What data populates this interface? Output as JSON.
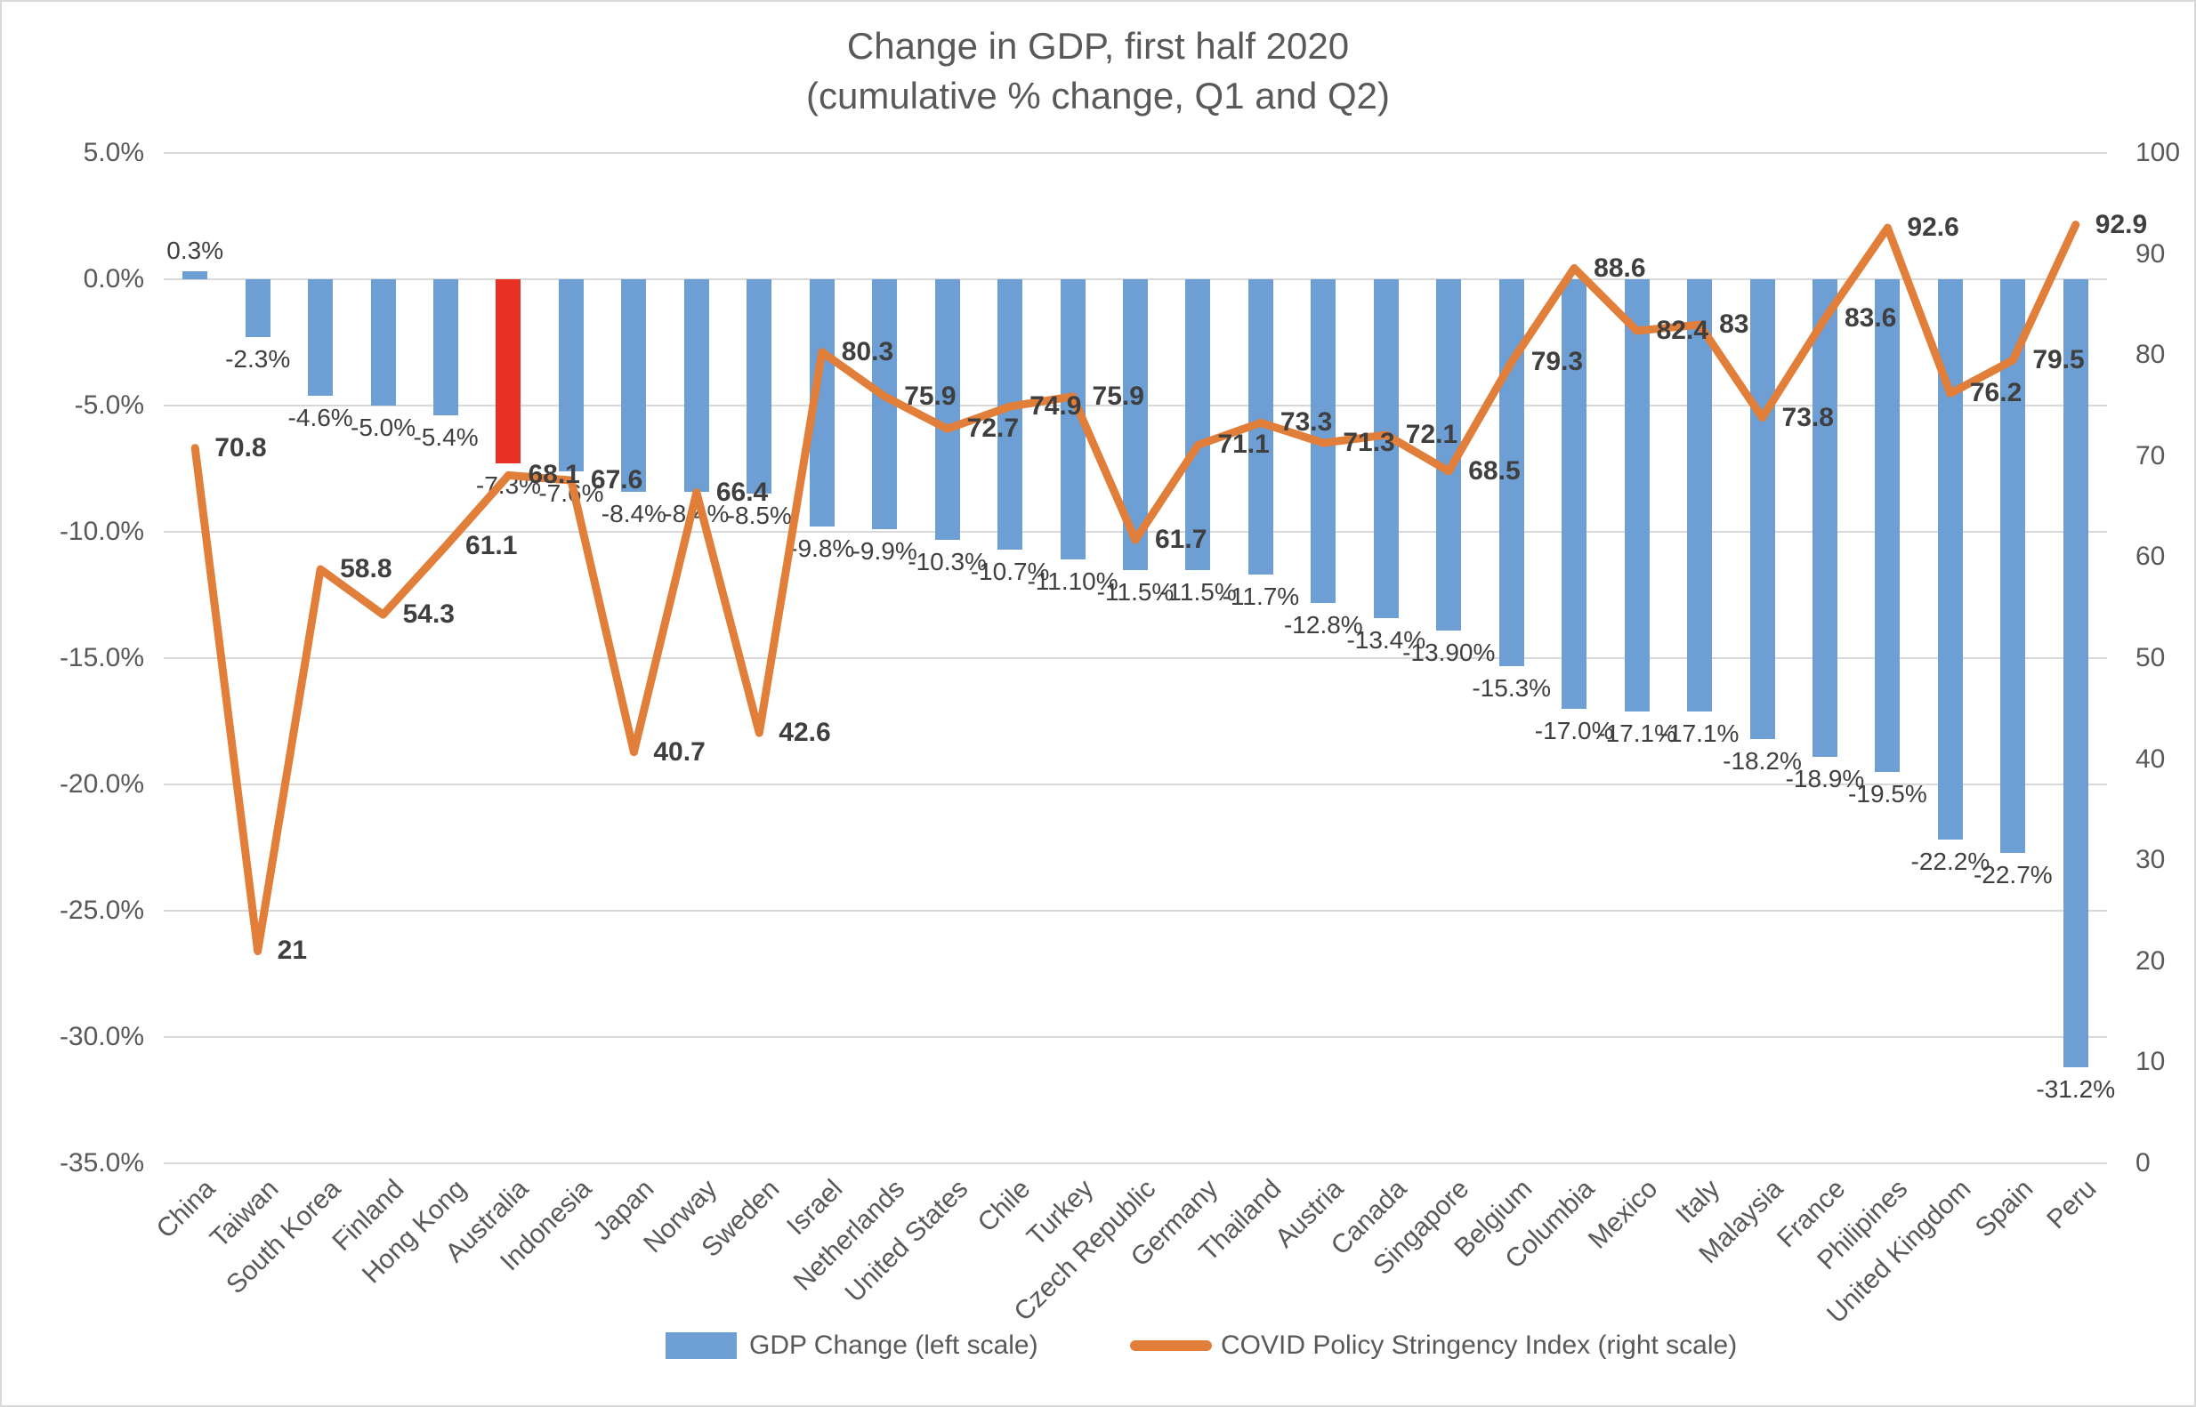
{
  "title": {
    "line1": "Change in GDP, first half 2020",
    "line2": "(cumulative % change, Q1 and Q2)"
  },
  "legend": {
    "bar_label": "GDP Change (left scale)",
    "line_label": "COVID Policy Stringency Index (right scale)"
  },
  "colors": {
    "bar": "#6d9fd4",
    "bar_highlight": "#e93025",
    "line": "#e07e3a",
    "grid": "#d9d9d9",
    "axis_text": "#595959",
    "data_label": "#3f3f3f"
  },
  "left_axis": {
    "tick_labels": [
      "5.0%",
      "0.0%",
      "-5.0%",
      "-10.0%",
      "-15.0%",
      "-20.0%",
      "-25.0%",
      "-30.0%",
      "-35.0%"
    ],
    "max": 5,
    "min": -35
  },
  "right_axis": {
    "tick_labels": [
      "100",
      "90",
      "80",
      "70",
      "60",
      "50",
      "40",
      "30",
      "20",
      "10",
      "0"
    ],
    "max": 100,
    "min": 0
  },
  "chart_data": {
    "type": "bar+line combo",
    "title": "Change in GDP, first half 2020 (cumulative % change, Q1 and Q2)",
    "grid": "horizontal",
    "left_ylim": [
      -35,
      5
    ],
    "right_ylim": [
      0,
      100
    ],
    "legend_position": "bottom",
    "categories": [
      "China",
      "Taiwan",
      "South Korea",
      "Finland",
      "Hong Kong",
      "Australia",
      "Indonesia",
      "Japan",
      "Norway",
      "Sweden",
      "Israel",
      "Netherlands",
      "United States",
      "Chile",
      "Turkey",
      "Czech Republic",
      "Germany",
      "Thailand",
      "Austria",
      "Canada",
      "Singapore",
      "Belgium",
      "Columbia",
      "Mexico",
      "Italy",
      "Malaysia",
      "France",
      "Philipines",
      "United Kingdom",
      "Spain",
      "Peru"
    ],
    "series": [
      {
        "name": "GDP Change (left scale)",
        "type": "bar",
        "axis": "left",
        "unit": "%",
        "highlight_index": 5,
        "values": [
          0.3,
          -2.3,
          -4.6,
          -5.0,
          -5.4,
          -7.3,
          -7.6,
          -8.4,
          -8.4,
          -8.5,
          -9.8,
          -9.9,
          -10.3,
          -10.7,
          -11.1,
          -11.5,
          -11.5,
          -11.7,
          -12.8,
          -13.4,
          -13.9,
          -15.3,
          -17.0,
          -17.1,
          -17.1,
          -18.2,
          -18.9,
          -19.5,
          -22.2,
          -22.7,
          -31.2
        ],
        "labels": [
          "0.3%",
          "-2.3%",
          "-4.6%",
          "-5.0%",
          "-5.4%",
          "-7.3%",
          "-7.6%",
          "-8.4%",
          "-8.4%",
          "-8.5%",
          "-9.8%",
          "-9.9%",
          "-10.3%",
          "-10.7%",
          "-11.10%",
          "-11.5%",
          "-11.5%",
          "-11.7%",
          "-12.8%",
          "-13.4%",
          "-13.90%",
          "-15.3%",
          "-17.0%",
          "-17.1%",
          "-17.1%",
          "-18.2%",
          "-18.9%",
          "-19.5%",
          "-22.2%",
          "-22.7%",
          "-31.2%"
        ]
      },
      {
        "name": "COVID Policy Stringency Index (right scale)",
        "type": "line",
        "axis": "right",
        "values": [
          70.8,
          21,
          58.8,
          54.3,
          61.1,
          68.1,
          67.6,
          40.7,
          66.4,
          42.6,
          80.3,
          75.9,
          72.7,
          74.9,
          75.9,
          61.7,
          71.1,
          73.3,
          71.3,
          72.1,
          68.5,
          79.3,
          88.6,
          82.4,
          83,
          73.8,
          83.6,
          92.6,
          76.2,
          79.5,
          92.9
        ],
        "labels": [
          "70.8",
          "21",
          "58.8",
          "54.3",
          "61.1",
          "68.1",
          "67.6",
          "40.7",
          "66.4",
          "42.6",
          "80.3",
          "75.9",
          "72.7",
          "74.9",
          "75.9",
          "61.7",
          "71.1",
          "73.3",
          "71.3",
          "72.1",
          "68.5",
          "79.3",
          "88.6",
          "82.4",
          "83",
          "73.8",
          "83.6",
          "92.6",
          "76.2",
          "79.5",
          "92.9"
        ]
      }
    ]
  }
}
